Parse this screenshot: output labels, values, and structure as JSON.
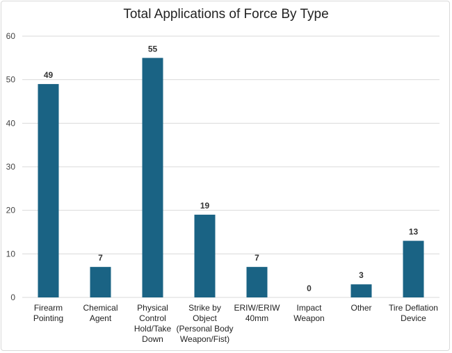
{
  "chart_data": {
    "type": "bar",
    "title": "Total Applications of Force By Type",
    "categories": [
      [
        "Firearm",
        "Pointing"
      ],
      [
        "Chemical",
        "Agent"
      ],
      [
        "Physical",
        "Control",
        "Hold/Take",
        "Down"
      ],
      [
        "Strike by",
        "Object",
        "(Personal Body",
        "Weapon/Fist)"
      ],
      [
        "ERIW/ERIW",
        "40mm"
      ],
      [
        "Impact",
        "Weapon"
      ],
      [
        "Other"
      ],
      [
        "Tire Deflation",
        "Device"
      ]
    ],
    "values": [
      49,
      7,
      55,
      19,
      7,
      0,
      3,
      13
    ],
    "ylim": [
      0,
      60
    ],
    "yticks": [
      0,
      10,
      20,
      30,
      40,
      50,
      60
    ],
    "grid": true,
    "bar_color": "#1a6384",
    "grid_color": "#d9d9d9"
  }
}
